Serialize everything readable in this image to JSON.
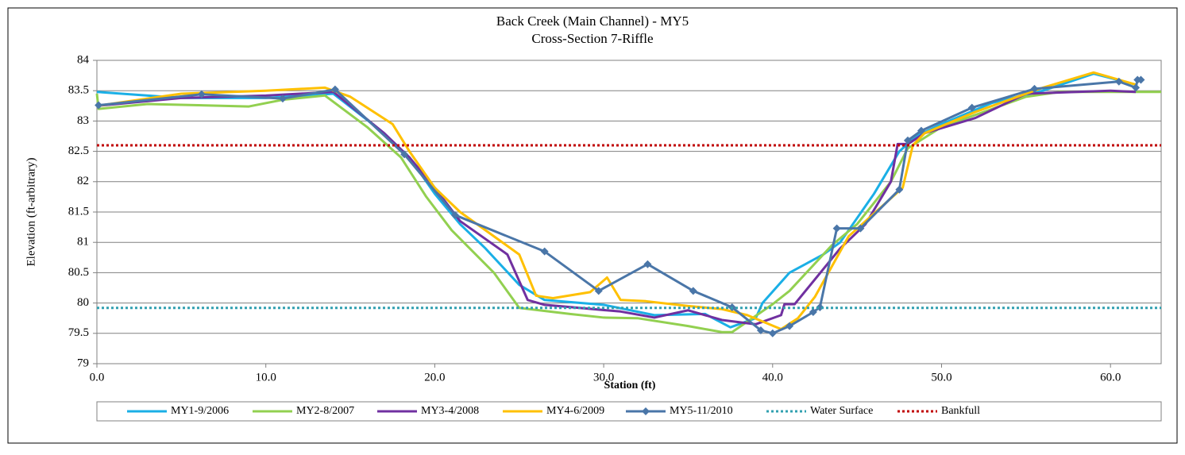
{
  "chart_data": {
    "type": "line",
    "title": "Back Creek (Main Channel) - MY5",
    "subtitle": "Cross-Section 7-Riffle",
    "x_label": "Station (ft)",
    "y_label": "Elevation (ft-arbitrary)",
    "xlim": [
      0,
      63
    ],
    "xticks": [
      {
        "value": 0,
        "label": "0.0"
      },
      {
        "value": 10,
        "label": "10.0"
      },
      {
        "value": 20,
        "label": "20.0"
      },
      {
        "value": 30,
        "label": "30.0"
      },
      {
        "value": 40,
        "label": "40.0"
      },
      {
        "value": 50,
        "label": "50.0"
      },
      {
        "value": 60,
        "label": "60.0"
      }
    ],
    "ylim": [
      79,
      84
    ],
    "yticks": [
      79,
      79.5,
      80,
      80.5,
      81,
      81.5,
      82,
      82.5,
      83,
      83.5,
      84
    ],
    "grid": true,
    "legend": "bottom",
    "series": [
      {
        "name": "MY1-9/2006",
        "color": "#1aafe6",
        "style": "solid",
        "x": [
          0,
          5,
          10,
          14,
          17,
          18.5,
          20,
          21.5,
          23,
          25,
          26.5,
          30,
          33,
          36,
          37.5,
          39,
          39.4,
          41,
          43,
          44,
          46,
          47.5,
          48.5,
          50,
          53,
          56,
          59,
          61.5
        ],
        "values": [
          83.48,
          83.38,
          83.38,
          83.45,
          82.8,
          82.4,
          81.8,
          81.3,
          80.9,
          80.3,
          80.05,
          79.97,
          79.8,
          79.82,
          79.6,
          79.75,
          80,
          80.5,
          80.8,
          81,
          81.8,
          82.5,
          82.75,
          82.95,
          83.3,
          83.5,
          83.78,
          83.6
        ]
      },
      {
        "name": "MY2-8/2007",
        "color": "#92d050",
        "style": "solid",
        "x": [
          0,
          0.1,
          3,
          9,
          11,
          13.5,
          16,
          18,
          19.5,
          21,
          23.5,
          25,
          28,
          30,
          32,
          35,
          37,
          37.6,
          40,
          41,
          43.5,
          45,
          47,
          48,
          50,
          52,
          55,
          57,
          63
        ],
        "values": [
          83.45,
          83.2,
          83.28,
          83.24,
          83.35,
          83.42,
          82.9,
          82.4,
          81.75,
          81.2,
          80.5,
          79.92,
          79.82,
          79.76,
          79.75,
          79.62,
          79.52,
          79.52,
          79.98,
          80.2,
          80.95,
          81.3,
          82,
          82.55,
          82.9,
          83.1,
          83.4,
          83.48,
          83.48
        ]
      },
      {
        "name": "MY3-4/2008",
        "color": "#7030a0",
        "style": "solid",
        "x": [
          0,
          5,
          10,
          14,
          17,
          18.5,
          20,
          21.5,
          24.3,
          25.5,
          26.5,
          31,
          33,
          35,
          37,
          39,
          40.5,
          40.7,
          41.3,
          44,
          45.5,
          47,
          47.4,
          48,
          49,
          52,
          55,
          60,
          61.5
        ],
        "values": [
          83.25,
          83.38,
          83.42,
          83.48,
          82.8,
          82.4,
          81.9,
          81.35,
          80.8,
          80.05,
          79.97,
          79.86,
          79.76,
          79.88,
          79.72,
          79.65,
          79.8,
          79.98,
          79.98,
          80.9,
          81.3,
          82,
          82.62,
          82.62,
          82.8,
          83.05,
          83.45,
          83.5,
          83.48
        ]
      },
      {
        "name": "MY4-6/2009",
        "color": "#ffc000",
        "style": "solid",
        "x": [
          0,
          5,
          10,
          13.5,
          15,
          17.5,
          18.5,
          20,
          21.5,
          25,
          26,
          27,
          29.2,
          30.2,
          31,
          32.5,
          35,
          37,
          38.5,
          40.5,
          41.5,
          42.5,
          44.5,
          46.5,
          47.7,
          48.3,
          49,
          52,
          56,
          59,
          61.5
        ],
        "values": [
          83.25,
          83.45,
          83.5,
          83.55,
          83.4,
          82.95,
          82.5,
          81.9,
          81.5,
          80.8,
          80.12,
          80.08,
          80.18,
          80.42,
          80.05,
          80.03,
          79.95,
          79.9,
          79.8,
          79.57,
          79.75,
          80.1,
          81.1,
          81.6,
          81.9,
          82.6,
          82.8,
          83.15,
          83.55,
          83.8,
          83.6
        ]
      },
      {
        "name": "MY5-11/2010",
        "color": "#4a76a8",
        "style": "solid",
        "marker": "diamond",
        "x": [
          0.1,
          6.2,
          11,
          14.1,
          18.2,
          21.2,
          26.5,
          29.7,
          32.6,
          35.3,
          37.6,
          39.3,
          40,
          41,
          42.4,
          42.8,
          43.8,
          45.2,
          47.5,
          48,
          48.8,
          51.8,
          55.5,
          60.5,
          61.5,
          61.6,
          61.8
        ],
        "values": [
          83.26,
          83.44,
          83.37,
          83.52,
          82.45,
          81.45,
          80.85,
          80.2,
          80.64,
          80.2,
          79.93,
          79.55,
          79.5,
          79.62,
          79.85,
          79.93,
          81.23,
          81.23,
          81.87,
          82.68,
          82.84,
          83.22,
          83.53,
          83.65,
          83.55,
          83.68,
          83.68
        ]
      },
      {
        "name": "Water Surface",
        "color": "#31a0b0",
        "style": "dotted",
        "x": [
          0,
          63
        ],
        "values": [
          79.92,
          79.92
        ]
      },
      {
        "name": "Bankfull",
        "color": "#c00000",
        "style": "dotted",
        "x": [
          0,
          63
        ],
        "values": [
          82.6,
          82.6
        ]
      }
    ]
  }
}
